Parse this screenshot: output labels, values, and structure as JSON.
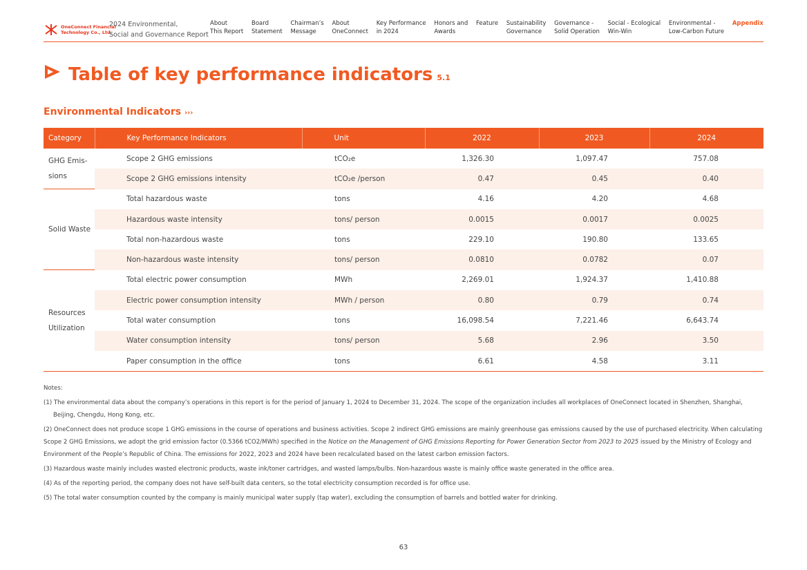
{
  "header": {
    "logo": [
      "OneConnect Financial",
      "Technology Co., Ltd."
    ],
    "report": "2024 Environmental,\nSocial and Governance Report",
    "nav": [
      "About\nThis Report",
      "Board\nStatement",
      "Chairman’s\nMessage",
      "About\nOneConnect",
      "Key Performance\nin 2024",
      "Honors and\nAwards",
      "Feature",
      "Sustainability\nGovernance",
      "Governance -\nSolid Operation",
      "Social - Ecological\nWin-Win",
      "Environmental -\nLow-Carbon Future",
      "Appendix"
    ]
  },
  "title": "Table of key performance indicators",
  "title_number": "5.1",
  "section": "Environmental Indicators",
  "table": {
    "headers": [
      "Category",
      "Key Performance Indicators",
      "Unit",
      "2022",
      "2023",
      "2024"
    ],
    "groups": [
      {
        "category": "GHG Emis-\nsions",
        "rows": [
          [
            "Scope 2 GHG  emissions",
            "tCO₂e",
            "1,326.30",
            "1,097.47",
            "757.08"
          ],
          [
            "Scope 2  GHG emissions intensity",
            "tCO₂e /person",
            "0.47",
            "0.45",
            "0.40"
          ]
        ]
      },
      {
        "category": "Solid Waste",
        "rows": [
          [
            "Total hazardous waste",
            "tons",
            "4.16",
            "4.20",
            "4.68"
          ],
          [
            "Hazardous waste  intensity",
            "tons/ person",
            "0.0015",
            "0.0017",
            "0.0025"
          ],
          [
            "Total non-hazardous waste",
            "tons",
            "229.10",
            "190.80",
            "133.65"
          ],
          [
            "Non-hazardous waste intensity",
            "tons/ person",
            "0.0810",
            "0.0782",
            "0.07"
          ]
        ]
      },
      {
        "category": "Resources\nUtilization",
        "rows": [
          [
            "Total electric power consumption",
            "MWh",
            "2,269.01",
            "1,924.37",
            "1,410.88"
          ],
          [
            "Electric power consumption intensity",
            "MWh / person",
            "0.80",
            "0.79",
            "0.74"
          ],
          [
            "Total water consumption",
            "tons",
            "16,098.54",
            "7,221.46",
            "6,643.74"
          ],
          [
            "Water consumption intensity",
            "tons/ person",
            "5.68",
            "2.96",
            "3.50"
          ],
          [
            "Paper consumption in the office",
            "tons",
            "6.61",
            "4.58",
            "3.11"
          ]
        ]
      }
    ]
  },
  "notes": {
    "heading": "Notes:",
    "items": [
      [
        "(1) The environmental data about the company’s operations in this report is for the period of January 1, 2024 to December 31, 2024. The scope of the organization includes all workplaces of OneConnect located in Shenzhen, Shanghai, Beijing, Chengdu, Hong Kong, etc."
      ],
      [
        "(2) OneConnect does not produce scope 1 GHG emissions in the course of operations and business activities. Scope 2 indirect GHG emissions are mainly greenhouse gas emissions caused by the use of purchased electricity. When calculating Scope 2 GHG Emissions, we adopt the grid emission factor (0.5366 tCO2/MWh) specified in the ",
        "Notice on the Management of GHG Emissions Reporting for Power Generation Sector from 2023 to 2025",
        " issued by the Ministry of Ecology and Environment of the People’s Republic of China. The emissions for 2022, 2023 and 2024 have been recalculated based on the latest carbon emission factors."
      ],
      [
        "(3) Hazardous waste mainly includes wasted electronic products, waste ink/toner cartridges, and wasted lamps/bulbs. Non-hazardous waste is mainly office waste generated in the office area."
      ],
      [
        "(4) As of the reporting period, the company does not have self-built data centers, so the total electricity consumption recorded is for office use."
      ],
      [
        "(5) The total water consumption counted by the company is mainly municipal water supply (tap water), excluding the consumption of barrels and bottled water for drinking."
      ]
    ]
  },
  "page_number": "63"
}
